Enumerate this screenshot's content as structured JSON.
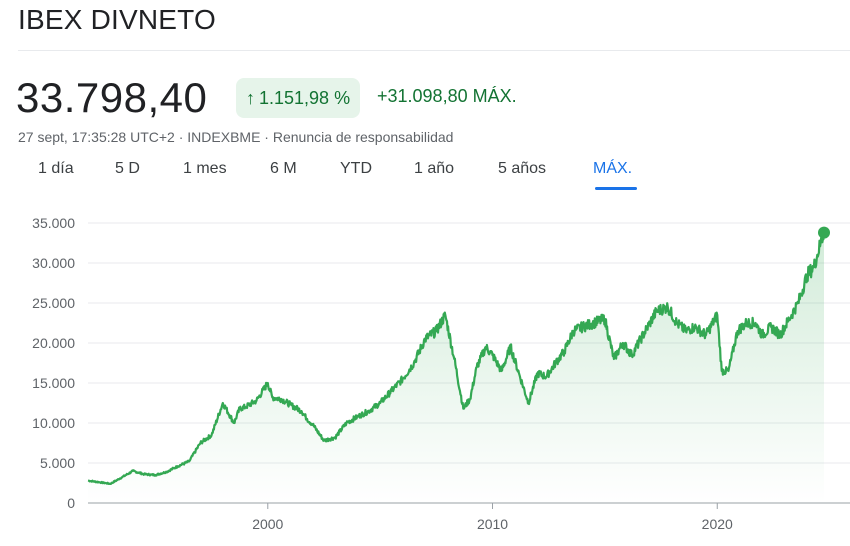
{
  "header": {
    "title": "IBEX DIVNETO",
    "price": "33.798,40",
    "pct_change": "1.151,98 %",
    "abs_change": "+31.098,80 MÁX.",
    "meta_time": "27 sept, 17:35:28 UTC+2",
    "meta_exchange": "INDEXBME",
    "meta_disclaimer": "Renuncia de responsabilidad",
    "meta_sep": " · "
  },
  "icons": {
    "change": "arrow-up-icon"
  },
  "colors": {
    "line": "#34a853",
    "positive_text": "#137333",
    "badge_bg": "#e6f4ea",
    "active_tab": "#1a73e8"
  },
  "tabs": [
    {
      "label": "1 día"
    },
    {
      "label": "5 D"
    },
    {
      "label": "1 mes"
    },
    {
      "label": "6 M"
    },
    {
      "label": "YTD"
    },
    {
      "label": "1 año"
    },
    {
      "label": "5 años"
    },
    {
      "label": "MÁX.",
      "active": true
    }
  ],
  "chart_data": {
    "type": "area",
    "x_unit": "year",
    "ylim": [
      0,
      35000
    ],
    "xlim": [
      1992,
      2024.75
    ],
    "yticks": [
      0,
      5000,
      10000,
      15000,
      20000,
      25000,
      30000,
      35000
    ],
    "ytick_labels": [
      "0",
      "5.000",
      "10.000",
      "15.000",
      "20.000",
      "25.000",
      "30.000",
      "35.000"
    ],
    "xticks": [
      2000,
      2010,
      2020
    ],
    "xtick_labels": [
      "2000",
      "2010",
      "2020"
    ],
    "grid": true,
    "series": [
      {
        "x": [
          1992.0,
          1992.5,
          1993.0,
          1993.5,
          1994.0,
          1994.5,
          1995.0,
          1995.5,
          1996.0,
          1996.5,
          1997.0,
          1997.5,
          1998.0,
          1998.5,
          1998.75,
          1999.0,
          1999.5,
          2000.0,
          2000.2,
          2000.6,
          2001.0,
          2001.5,
          2001.75,
          2002.0,
          2002.5,
          2002.75,
          2003.0,
          2003.5,
          2004.0,
          2004.5,
          2005.0,
          2005.5,
          2006.0,
          2006.5,
          2007.0,
          2007.5,
          2007.9,
          2008.3,
          2008.7,
          2009.0,
          2009.3,
          2009.7,
          2010.0,
          2010.4,
          2010.8,
          2011.2,
          2011.6,
          2012.0,
          2012.4,
          2012.8,
          2013.2,
          2013.6,
          2014.0,
          2014.5,
          2015.0,
          2015.4,
          2015.8,
          2016.2,
          2016.6,
          2017.0,
          2017.3,
          2017.8,
          2018.2,
          2018.6,
          2019.0,
          2019.5,
          2020.0,
          2020.2,
          2020.5,
          2020.9,
          2021.3,
          2021.7,
          2022.0,
          2022.4,
          2022.8,
          2023.2,
          2023.6,
          2024.0,
          2024.3,
          2024.6,
          2024.75
        ],
        "values": [
          2800,
          2600,
          2400,
          3200,
          4000,
          3600,
          3500,
          3900,
          4600,
          5200,
          7500,
          8500,
          12500,
          10000,
          11800,
          12000,
          12800,
          15000,
          13200,
          13000,
          12300,
          11500,
          10500,
          9800,
          7800,
          8000,
          8200,
          10000,
          10800,
          11500,
          12500,
          14000,
          15500,
          17500,
          20500,
          21500,
          23500,
          18000,
          11800,
          13000,
          17000,
          19500,
          18500,
          16500,
          19500,
          16000,
          12500,
          16200,
          15800,
          17500,
          19000,
          21500,
          22000,
          22500,
          23000,
          18000,
          20000,
          18500,
          20500,
          22500,
          24000,
          24500,
          22500,
          21500,
          22000,
          21000,
          23500,
          16500,
          16500,
          21500,
          22500,
          22500,
          21000,
          22000,
          21000,
          23000,
          25000,
          28500,
          29500,
          32500,
          33798.4
        ]
      }
    ],
    "endpoint": {
      "x": 2024.75,
      "y": 33798.4
    }
  }
}
